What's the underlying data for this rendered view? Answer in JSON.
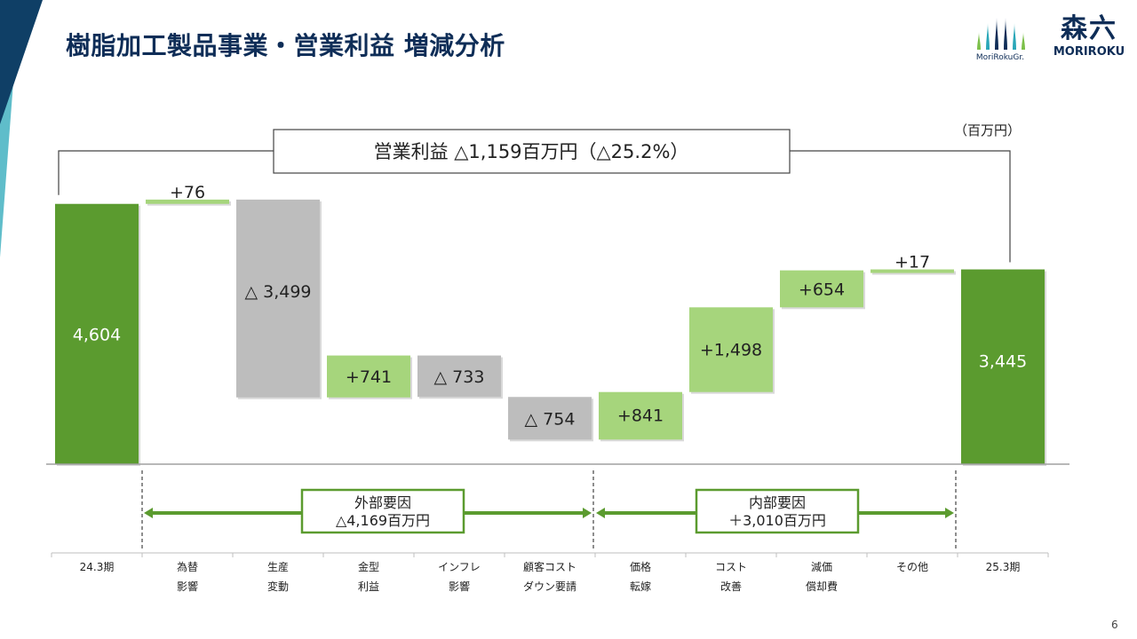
{
  "title": "樹脂加工製品事業・営業利益 増減分析",
  "unit_label": "（百万円）",
  "page_number": "6",
  "logos": {
    "group_caption": "MoriRokuGr.",
    "company_kanji": "森六",
    "company_latin": "MORIROKU"
  },
  "summary_box": "営業利益 △1,159百万円（△25.2%）",
  "groups": {
    "external": {
      "line1": "外部要因",
      "line2": "△4,169百万円"
    },
    "internal": {
      "line1": "内部要因",
      "line2": "＋3,010百万円"
    }
  },
  "colors": {
    "total": "#5b9b2f",
    "increase": "#a6d57c",
    "decrease": "#bdbdbd",
    "title": "#0e2d57",
    "group_border": "#5b9b2f"
  },
  "chart_data": {
    "type": "waterfall",
    "title": "",
    "unit": "百万円",
    "categories": [
      [
        "24.3期"
      ],
      [
        "為替",
        "影響"
      ],
      [
        "生産",
        "変動"
      ],
      [
        "金型",
        "利益"
      ],
      [
        "インフレ",
        "影響"
      ],
      [
        "顧客コスト",
        "ダウン要請"
      ],
      [
        "価格",
        "転嫁"
      ],
      [
        "コスト",
        "改善"
      ],
      [
        "減価",
        "償却費"
      ],
      [
        "その他"
      ],
      [
        "25.3期"
      ]
    ],
    "values": [
      4604,
      76,
      -3499,
      741,
      -733,
      -754,
      841,
      1498,
      654,
      17,
      3445
    ],
    "kinds": [
      "total",
      "delta",
      "delta",
      "delta",
      "delta",
      "delta",
      "delta",
      "delta",
      "delta",
      "delta",
      "total"
    ],
    "labels": [
      "4,604",
      "+76",
      "△ 3,499",
      "+741",
      "△ 733",
      "△ 754",
      "+841",
      "+1,498",
      "+654",
      "+17",
      "3,445"
    ]
  }
}
